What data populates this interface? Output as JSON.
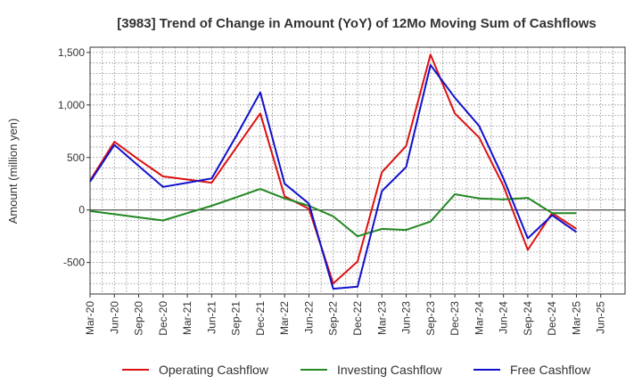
{
  "chart_data": {
    "type": "line",
    "title": "[3983]  Trend of Change in Amount (YoY) of 12Mo Moving Sum of Cashflows",
    "xlabel": "",
    "ylabel": "Amount (million yen)",
    "ylim": [
      -800,
      1550
    ],
    "yticks": [
      1500,
      1000,
      500,
      0,
      -500
    ],
    "ytick_labels": [
      "1,500",
      "1,000",
      "500",
      "0",
      "-500"
    ],
    "categories": [
      "Mar-20",
      "Jun-20",
      "Sep-20",
      "Dec-20",
      "Mar-21",
      "Jun-21",
      "Sep-21",
      "Dec-21",
      "Mar-22",
      "Jun-22",
      "Sep-22",
      "Dec-22",
      "Mar-23",
      "Jun-23",
      "Sep-23",
      "Dec-23",
      "Mar-24",
      "Jun-24",
      "Sep-24",
      "Dec-24",
      "Mar-25",
      "Jun-25"
    ],
    "series": [
      {
        "name": "Operating Cashflow",
        "color": "#dd1111",
        "values": [
          280,
          650,
          480,
          320,
          290,
          260,
          590,
          920,
          130,
          10,
          -700,
          -490,
          360,
          610,
          1480,
          920,
          690,
          230,
          -380,
          -30,
          -180,
          null
        ]
      },
      {
        "name": "Investing Cashflow",
        "color": "#228822",
        "values": [
          -10,
          -40,
          -70,
          -100,
          -30,
          40,
          120,
          200,
          110,
          40,
          -60,
          -250,
          -180,
          -190,
          -110,
          150,
          110,
          100,
          115,
          -30,
          -30,
          null
        ]
      },
      {
        "name": "Free Cashflow",
        "color": "#1111cc",
        "values": [
          270,
          620,
          420,
          220,
          260,
          300,
          700,
          1120,
          250,
          60,
          -750,
          -730,
          180,
          410,
          1380,
          1070,
          800,
          300,
          -270,
          -50,
          -210,
          null
        ]
      }
    ]
  }
}
